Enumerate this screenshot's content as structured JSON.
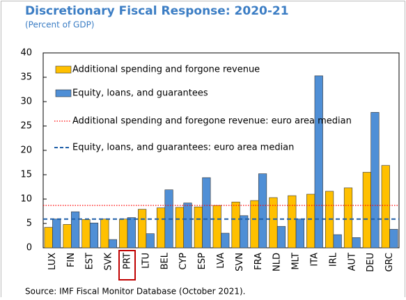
{
  "chart_data": {
    "type": "bar",
    "title": "Discretionary Fiscal Response: 2020-21",
    "subtitle": "(Percent of GDP)",
    "source": "Source: IMF Fiscal Monitor Database (October 2021).",
    "categories": [
      "LUX",
      "FIN",
      "EST",
      "SVK",
      "PRT",
      "LTU",
      "BEL",
      "CYP",
      "ESP",
      "LVA",
      "SVN",
      "FRA",
      "NLD",
      "MLT",
      "ITA",
      "IRL",
      "AUT",
      "DEU",
      "GRC"
    ],
    "series": [
      {
        "name": "Additional spending and forgone revenue",
        "color": "#ffc000",
        "values": [
          4.2,
          4.8,
          5.8,
          5.9,
          5.9,
          7.9,
          8.2,
          8.3,
          8.4,
          8.7,
          9.4,
          9.7,
          10.3,
          10.7,
          11.0,
          11.6,
          12.3,
          15.5,
          16.9
        ]
      },
      {
        "name": "Equity, loans, and guarantees",
        "color": "#4f8fd6",
        "values": [
          5.9,
          7.4,
          5.1,
          1.7,
          6.2,
          2.9,
          11.9,
          9.2,
          14.4,
          3.0,
          6.6,
          15.2,
          4.4,
          5.9,
          35.3,
          2.7,
          2.1,
          27.8,
          3.8
        ]
      }
    ],
    "reference_lines": [
      {
        "name": "Additional spending and foregone revenue: euro area median",
        "value": 8.7,
        "color": "#ff0000",
        "style": "dotted"
      },
      {
        "name": "Equity, loans, and guarantees: euro area median",
        "value": 5.9,
        "color": "#1f5fa8",
        "style": "dashed"
      }
    ],
    "ylim": [
      0,
      40
    ],
    "yticks": [
      0,
      5,
      10,
      15,
      20,
      25,
      30,
      35,
      40
    ]
  }
}
